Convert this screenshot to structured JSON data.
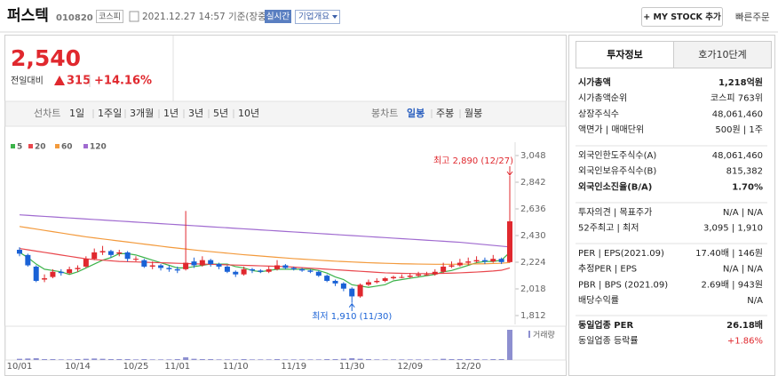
{
  "header": {
    "name": "퍼스텍",
    "code": "010820",
    "market": "코스피",
    "datetime": "2021.12.27 14:57 기준(장중)",
    "realtime": "실시간",
    "company_overview": "기업개요",
    "my_stock": "+ MY STOCK 추가",
    "quick_order": "빠른주문"
  },
  "price": {
    "current": "2,540",
    "change_label": "전일대비",
    "change": "315",
    "change_pct": "+14.16%"
  },
  "period_tabs": {
    "line_label": "선차트",
    "line_periods": [
      "1일",
      "1주일",
      "3개월",
      "1년",
      "3년",
      "5년",
      "10년"
    ],
    "candle_label": "봉차트",
    "candle_periods": [
      "일봉",
      "주봉",
      "월봉"
    ]
  },
  "info_panel": {
    "tabs": [
      "투자정보",
      "호가10단계"
    ],
    "groups": [
      [
        {
          "label": "시가총액",
          "value": "1,218억원",
          "bold": true
        },
        {
          "label": "시가총액순위",
          "value": "코스피 763위"
        },
        {
          "label": "상장주식수",
          "value": "48,061,460"
        },
        {
          "label": "액면가 | 매매단위",
          "value": "500원 | 1주"
        }
      ],
      [
        {
          "label": "외국인한도주식수(A)",
          "value": "48,061,460"
        },
        {
          "label": "외국인보유주식수(B)",
          "value": "815,382"
        },
        {
          "label": "외국인소진율(B/A)",
          "value": "1.70%",
          "bold": true
        }
      ],
      [
        {
          "label": "투자의견 | 목표주가",
          "value": "N/A | N/A"
        },
        {
          "label": "52주최고 | 최저",
          "value": "3,095 | 1,910"
        }
      ],
      [
        {
          "label": "PER | EPS(2021.09)",
          "value": "17.40배 | 146원"
        },
        {
          "label": "추정PER | EPS",
          "value": "N/A | N/A"
        },
        {
          "label": "PBR | BPS (2021.09)",
          "value": "2.69배 | 943원"
        },
        {
          "label": "배당수익률",
          "value": "N/A"
        }
      ],
      [
        {
          "label": "동일업종 PER",
          "value": "26.18배",
          "bold": true
        },
        {
          "label": "동일업종 등락률",
          "value": "+1.86%",
          "color": "#e0282e"
        }
      ]
    ]
  },
  "chart_data": {
    "type": "candlestick",
    "up_color": "#e0282e",
    "down_color": "#1a62d6",
    "categories": [
      "10/01",
      null,
      null,
      null,
      null,
      null,
      null,
      "10/14",
      null,
      null,
      null,
      null,
      null,
      null,
      "10/25",
      null,
      null,
      null,
      null,
      "11/01",
      null,
      null,
      null,
      null,
      null,
      null,
      "11/10",
      null,
      null,
      null,
      null,
      null,
      null,
      "11/19",
      null,
      null,
      null,
      null,
      null,
      null,
      "11/30",
      null,
      null,
      null,
      null,
      null,
      null,
      "12/09",
      null,
      null,
      null,
      null,
      null,
      null,
      "12/20",
      null,
      null,
      null,
      null,
      null
    ],
    "open": [
      2320,
      2280,
      2190,
      2090,
      2110,
      2150,
      2140,
      2170,
      2190,
      2250,
      2300,
      2310,
      2290,
      2300,
      2250,
      2240,
      2190,
      2200,
      2180,
      2170,
      2170,
      2230,
      2200,
      2240,
      2210,
      2190,
      2150,
      2130,
      2170,
      2160,
      2150,
      2170,
      2200,
      2180,
      2170,
      2160,
      2150,
      2120,
      2080,
      2060,
      2020,
      1960,
      2050,
      2070,
      2080,
      2100,
      2110,
      2110,
      2120,
      2130,
      2130,
      2150,
      2190,
      2200,
      2220,
      2230,
      2240,
      2230,
      2250,
      2225
    ],
    "high": [
      2340,
      2290,
      2200,
      2130,
      2170,
      2170,
      2190,
      2200,
      2270,
      2330,
      2350,
      2320,
      2320,
      2310,
      2270,
      2250,
      2230,
      2210,
      2200,
      2190,
      2620,
      2260,
      2270,
      2250,
      2220,
      2200,
      2160,
      2190,
      2180,
      2170,
      2190,
      2240,
      2210,
      2190,
      2180,
      2170,
      2160,
      2130,
      2090,
      2070,
      2030,
      2060,
      2090,
      2100,
      2110,
      2120,
      2130,
      2140,
      2150,
      2150,
      2170,
      2220,
      2230,
      2250,
      2260,
      2270,
      2260,
      2280,
      2260,
      2890
    ],
    "low": [
      2270,
      2190,
      2070,
      2070,
      2100,
      2120,
      2130,
      2150,
      2180,
      2240,
      2280,
      2260,
      2270,
      2230,
      2230,
      2180,
      2170,
      2160,
      2150,
      2140,
      2160,
      2180,
      2190,
      2190,
      2170,
      2140,
      2110,
      2120,
      2140,
      2140,
      2140,
      2160,
      2170,
      2160,
      2150,
      2140,
      2110,
      2070,
      2040,
      2000,
      1910,
      1950,
      2040,
      2060,
      2070,
      2090,
      2100,
      2100,
      2110,
      2120,
      2120,
      2140,
      2180,
      2190,
      2200,
      2220,
      2210,
      2220,
      2210,
      2220
    ],
    "close": [
      2290,
      2200,
      2080,
      2100,
      2150,
      2140,
      2170,
      2180,
      2250,
      2300,
      2310,
      2280,
      2300,
      2250,
      2250,
      2190,
      2200,
      2180,
      2170,
      2160,
      2220,
      2200,
      2240,
      2210,
      2190,
      2150,
      2130,
      2170,
      2160,
      2150,
      2170,
      2200,
      2180,
      2170,
      2160,
      2150,
      2120,
      2080,
      2060,
      2020,
      1960,
      2050,
      2070,
      2080,
      2100,
      2110,
      2110,
      2120,
      2130,
      2130,
      2150,
      2190,
      2200,
      2220,
      2230,
      2240,
      2230,
      2250,
      2225,
      2540
    ],
    "volume": [
      4,
      5,
      6,
      3,
      3,
      2,
      2,
      3,
      4,
      5,
      4,
      3,
      3,
      3,
      2,
      3,
      2,
      2,
      2,
      3,
      9,
      4,
      3,
      3,
      2,
      2,
      2,
      3,
      2,
      2,
      2,
      3,
      2,
      2,
      2,
      2,
      2,
      3,
      3,
      4,
      6,
      4,
      3,
      2,
      2,
      2,
      2,
      2,
      2,
      2,
      2,
      4,
      3,
      3,
      3,
      3,
      2,
      3,
      3,
      100
    ],
    "volume_label": "거래량",
    "series": [
      {
        "name": "5",
        "color": "#3cb34a",
        "values": [
          2300,
          2260,
          2210,
          2170,
          2160,
          2150,
          2130,
          2150,
          2180,
          2210,
          2240,
          2260,
          2290,
          2290,
          2280,
          2260,
          2240,
          2220,
          2200,
          2180,
          2180,
          2190,
          2200,
          2210,
          2210,
          2210,
          2190,
          2180,
          2160,
          2150,
          2160,
          2170,
          2170,
          2170,
          2170,
          2170,
          2160,
          2140,
          2110,
          2090,
          2050,
          2040,
          2030,
          2040,
          2050,
          2080,
          2090,
          2100,
          2110,
          2120,
          2130,
          2150,
          2160,
          2180,
          2200,
          2220,
          2230,
          2230,
          2240,
          2300
        ]
      },
      {
        "name": "20",
        "color": "#e9474d",
        "values": [
          2330,
          2320,
          2310,
          2300,
          2290,
          2280,
          2270,
          2260,
          2250,
          2245,
          2240,
          2235,
          2230,
          2228,
          2226,
          2224,
          2222,
          2220,
          2218,
          2216,
          2214,
          2212,
          2210,
          2208,
          2206,
          2204,
          2202,
          2200,
          2198,
          2196,
          2194,
          2192,
          2190,
          2186,
          2182,
          2178,
          2174,
          2170,
          2166,
          2162,
          2158,
          2154,
          2150,
          2146,
          2142,
          2140,
          2138,
          2137,
          2136,
          2136,
          2137,
          2138,
          2140,
          2142,
          2145,
          2148,
          2152,
          2156,
          2162,
          2180
        ]
      },
      {
        "name": "60",
        "color": "#f39a3c",
        "values": [
          2500,
          2490,
          2480,
          2470,
          2460,
          2450,
          2440,
          2430,
          2420,
          2412,
          2404,
          2396,
          2388,
          2380,
          2372,
          2364,
          2356,
          2348,
          2340,
          2333,
          2326,
          2319,
          2312,
          2306,
          2300,
          2294,
          2288,
          2282,
          2277,
          2272,
          2267,
          2262,
          2257,
          2252,
          2248,
          2244,
          2240,
          2236,
          2232,
          2229,
          2226,
          2223,
          2220,
          2218,
          2216,
          2214,
          2212,
          2211,
          2210,
          2209,
          2208,
          2208,
          2208,
          2209,
          2210,
          2211,
          2212,
          2214,
          2216,
          2222
        ]
      },
      {
        "name": "120",
        "color": "#a06bd0",
        "values": [
          2590,
          2586,
          2582,
          2578,
          2574,
          2570,
          2566,
          2562,
          2558,
          2554,
          2550,
          2546,
          2542,
          2538,
          2534,
          2530,
          2526,
          2522,
          2518,
          2514,
          2510,
          2506,
          2502,
          2498,
          2494,
          2490,
          2486,
          2482,
          2478,
          2474,
          2470,
          2466,
          2462,
          2458,
          2454,
          2450,
          2446,
          2442,
          2438,
          2434,
          2430,
          2426,
          2422,
          2418,
          2414,
          2410,
          2406,
          2402,
          2398,
          2394,
          2390,
          2386,
          2382,
          2378,
          2372,
          2366,
          2360,
          2354,
          2348,
          2342
        ]
      }
    ],
    "ylim": [
      1812,
      3048
    ],
    "yticks": [
      {
        "value": 1812,
        "label": "1,812"
      },
      {
        "value": 2018,
        "label": "2,018"
      },
      {
        "value": 2224,
        "label": "2,224"
      },
      {
        "value": 2430,
        "label": "2,430"
      },
      {
        "value": 2636,
        "label": "2,636"
      },
      {
        "value": 2842,
        "label": "2,842"
      },
      {
        "value": 3048,
        "label": "3,048"
      }
    ],
    "high_label": "최고 2,890 (12/27)",
    "low_label": "최저 1,910 (11/30)"
  }
}
